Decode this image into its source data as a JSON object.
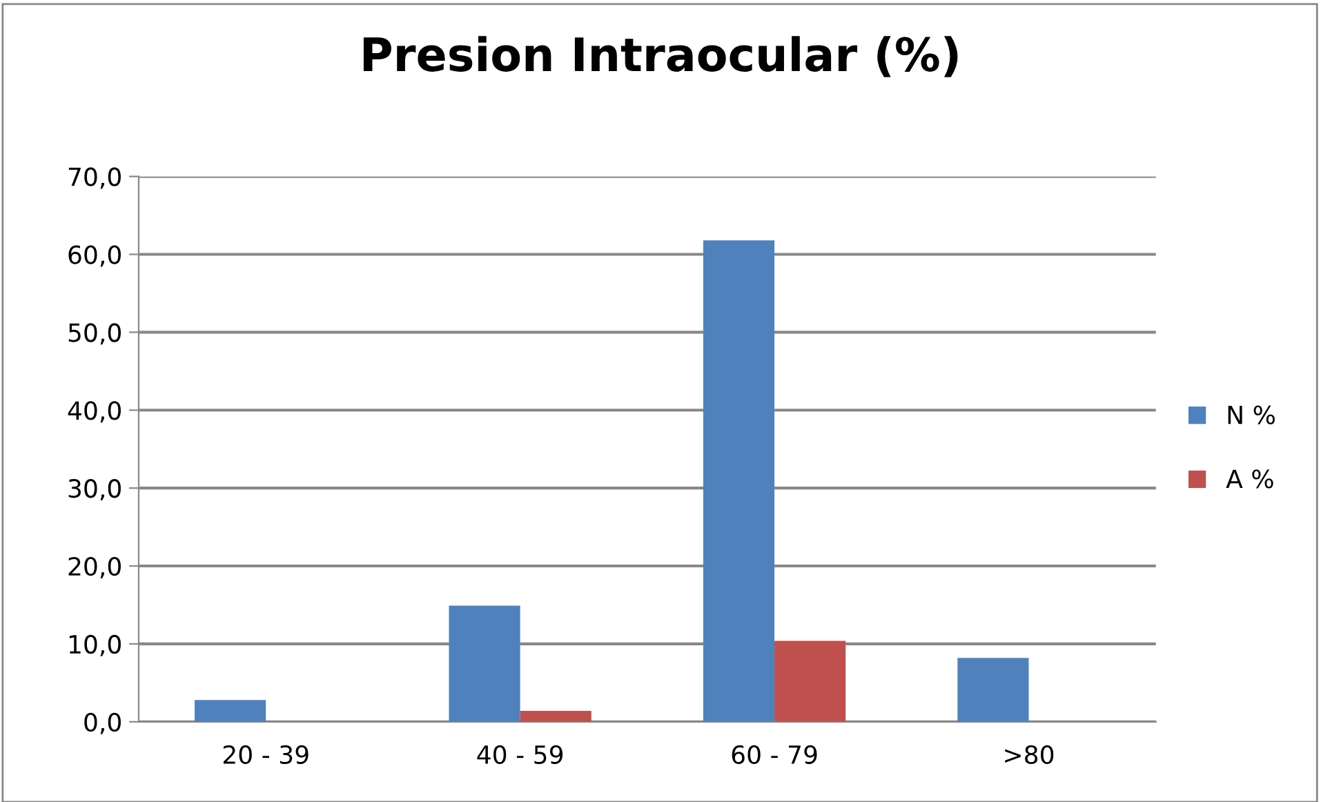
{
  "chart_data": {
    "type": "bar",
    "title": "Presion Intraocular (%)",
    "categories": [
      "20 - 39",
      "40 - 59",
      "60 - 79",
      ">80"
    ],
    "series": [
      {
        "name": "N %",
        "color": "#4f81bd",
        "values": [
          2.8,
          14.9,
          61.8,
          8.2
        ]
      },
      {
        "name": "A %",
        "color": "#c0504d",
        "values": [
          null,
          1.4,
          10.4,
          null
        ]
      }
    ],
    "ylim": [
      0,
      70
    ],
    "yticks": [
      {
        "value": 0,
        "label": "0,0"
      },
      {
        "value": 10,
        "label": "10,0"
      },
      {
        "value": 20,
        "label": "20,0"
      },
      {
        "value": 30,
        "label": "30,0"
      },
      {
        "value": 40,
        "label": "40,0"
      },
      {
        "value": 50,
        "label": "50,0"
      },
      {
        "value": 60,
        "label": "60,0"
      },
      {
        "value": 70,
        "label": "70,0"
      }
    ],
    "grid": "y",
    "legend": "right"
  }
}
